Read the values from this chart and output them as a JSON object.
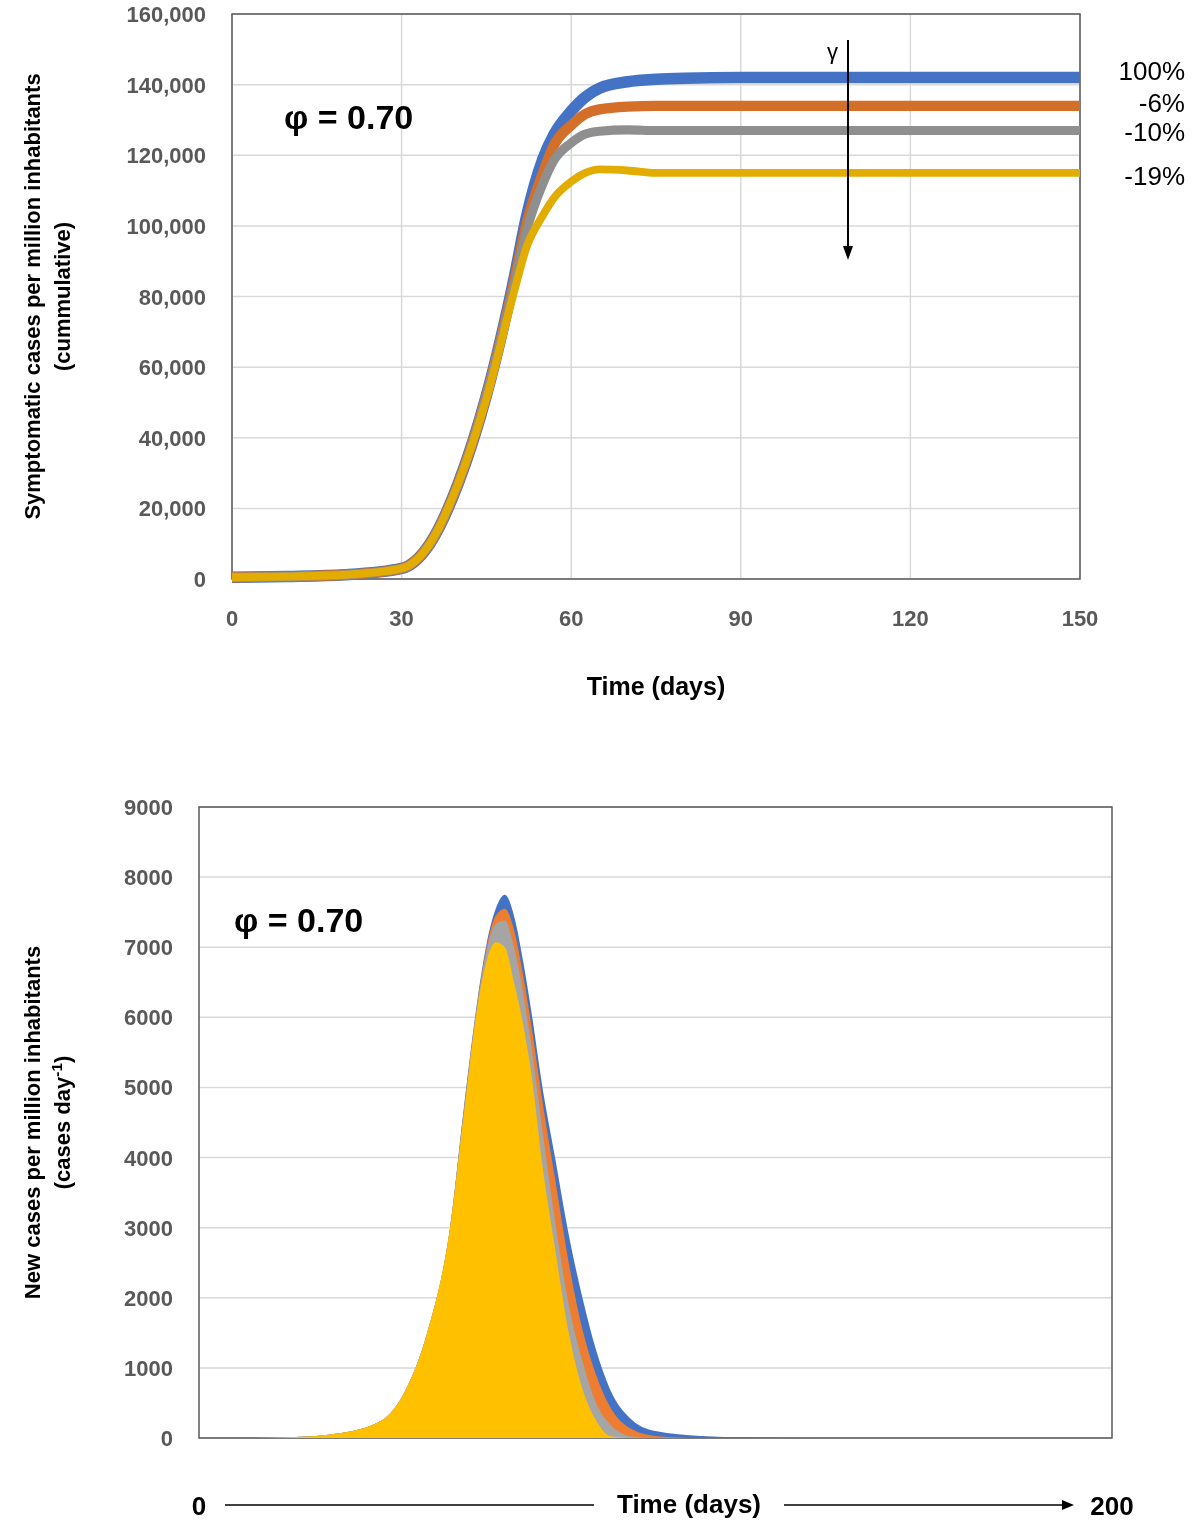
{
  "chart_data": [
    {
      "type": "line",
      "xlabel": "Time (days)",
      "ylabel": "Symptomatic cases per million inhabitants\n(cummulative)",
      "annotations": [
        "φ = 0.70",
        "γ"
      ],
      "x": [
        0,
        10,
        20,
        30,
        35,
        40,
        45,
        50,
        52,
        55,
        57,
        60,
        62.5,
        65,
        70,
        75,
        80,
        90,
        120,
        150
      ],
      "series": [
        {
          "name": "100%",
          "color": "#4472c4",
          "values": [
            500,
            700,
            1200,
            3000,
            10000,
            27000,
            52000,
            86000,
            102000,
            119000,
            126000,
            132500,
            136500,
            139000,
            140800,
            141500,
            141800,
            142000,
            142000,
            142000
          ]
        },
        {
          "name": "-6%",
          "color": "#d46f2a",
          "values": [
            500,
            700,
            1200,
            3000,
            10000,
            27000,
            52000,
            85000,
            100000,
            115000,
            123000,
            128500,
            131700,
            133000,
            133800,
            134000,
            134000,
            134000,
            134000,
            134000
          ]
        },
        {
          "name": "-10%",
          "color": "#8f8f8f",
          "values": [
            500,
            700,
            1200,
            3000,
            10000,
            27000,
            52000,
            84000,
            98000,
            112000,
            118700,
            123500,
            126000,
            126800,
            127200,
            127000,
            127000,
            127000,
            127000,
            127000
          ]
        },
        {
          "name": "-19%",
          "color": "#e2ac00",
          "values": [
            500,
            700,
            1200,
            3000,
            10000,
            27000,
            51000,
            82000,
            93500,
            103000,
            108000,
            112500,
            115000,
            116000,
            115700,
            115000,
            115000,
            115000,
            115000,
            115000
          ]
        }
      ],
      "xlim": [
        0,
        150
      ],
      "xticks": [
        0,
        30,
        60,
        90,
        120,
        150
      ],
      "ylim": [
        0,
        160000
      ],
      "yticks": [
        {
          "value": 0,
          "label": "0"
        },
        {
          "value": 20000,
          "label": "20,000"
        },
        {
          "value": 40000,
          "label": "40,000"
        },
        {
          "value": 60000,
          "label": "60,000"
        },
        {
          "value": 80000,
          "label": "80,000"
        },
        {
          "value": 100000,
          "label": "100,000"
        },
        {
          "value": 120000,
          "label": "120,000"
        },
        {
          "value": 140000,
          "label": "140,000"
        },
        {
          "value": 160000,
          "label": "160,000"
        }
      ],
      "grid": true,
      "marker": "none",
      "line_style": "solid"
    },
    {
      "type": "area",
      "xlabel": "Time (days)",
      "ylabel": "New cases per million inhabitants\n(cases day$^{-1}$)",
      "annotations": [
        "φ = 0.70"
      ],
      "x": [
        0,
        10,
        20,
        30,
        40,
        45,
        50,
        55,
        58,
        61,
        63,
        65,
        67,
        69,
        71,
        73,
        75,
        78,
        81,
        84,
        87,
        90,
        95,
        100,
        110,
        120,
        140,
        160,
        180,
        200
      ],
      "series": [
        {
          "color": "#4472c4",
          "values": [
            0,
            0,
            10,
            60,
            250,
            650,
            1500,
            3000,
            4700,
            6250,
            7050,
            7550,
            7750,
            7450,
            6800,
            6000,
            5100,
            4000,
            2900,
            2000,
            1250,
            700,
            250,
            100,
            30,
            10,
            0,
            0,
            0,
            0
          ]
        },
        {
          "color": "#ed7d31",
          "values": [
            0,
            0,
            10,
            60,
            250,
            650,
            1500,
            3000,
            4650,
            6200,
            7000,
            7450,
            7550,
            7250,
            6600,
            5800,
            4900,
            3700,
            2500,
            1550,
            900,
            450,
            120,
            30,
            0,
            0,
            0,
            0,
            0,
            0
          ]
        },
        {
          "color": "#a5a5a5",
          "values": [
            0,
            0,
            10,
            60,
            250,
            650,
            1500,
            3000,
            4650,
            6200,
            6950,
            7330,
            7380,
            7000,
            6350,
            5500,
            4500,
            3100,
            1900,
            1100,
            500,
            200,
            20,
            0,
            0,
            0,
            0,
            0,
            0,
            0
          ]
        },
        {
          "color": "#ffc000",
          "values": [
            0,
            0,
            10,
            60,
            250,
            650,
            1500,
            3000,
            4600,
            6150,
            6800,
            7070,
            7000,
            6500,
            5900,
            5100,
            4000,
            2700,
            1500,
            700,
            250,
            30,
            0,
            0,
            0,
            0,
            0,
            0,
            0,
            0
          ]
        }
      ],
      "xlim": [
        0,
        200
      ],
      "xticks": [
        0,
        200
      ],
      "ylim": [
        0,
        9000
      ],
      "yticks": [
        0,
        1000,
        2000,
        3000,
        4000,
        5000,
        6000,
        7000,
        8000,
        9000
      ],
      "grid": "y"
    }
  ]
}
